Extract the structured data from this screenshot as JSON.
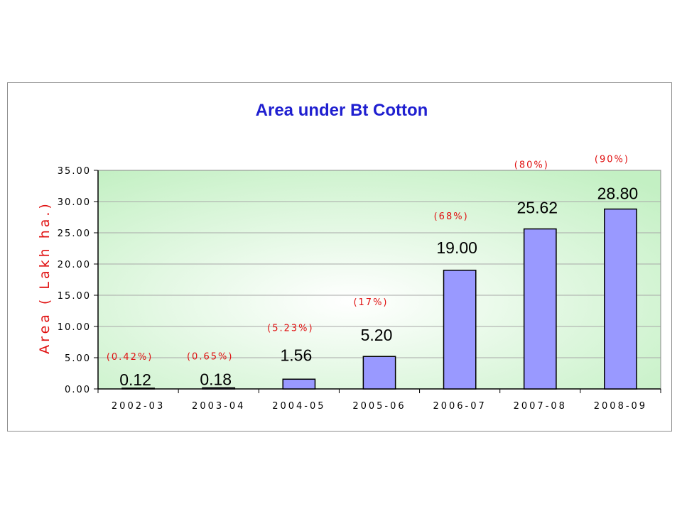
{
  "chart_data": {
    "type": "bar",
    "title": "Area under Bt Cotton",
    "ylabel": "Area ( Lakh ha.)",
    "xlabel": "",
    "categories": [
      "2002-03",
      "2003-04",
      "2004-05",
      "2005-06",
      "2006-07",
      "2007-08",
      "2008-09"
    ],
    "values": [
      0.12,
      0.18,
      1.56,
      5.2,
      19.0,
      25.62,
      28.8
    ],
    "value_labels": [
      "0.12",
      "0.18",
      "1.56",
      "5.20",
      "19.00",
      "25.62",
      "28.80"
    ],
    "share_labels": [
      "(0.42%)",
      "(0.65%)",
      "(5.23%)",
      "(17%)",
      "(68%)",
      "(80%)",
      "(90%)"
    ],
    "ylim": [
      0,
      35
    ],
    "yticks": [
      0,
      5,
      10,
      15,
      20,
      25,
      30,
      35
    ],
    "ytick_labels": [
      "0.00",
      "5.00",
      "10.00",
      "15.00",
      "20.00",
      "25.00",
      "30.00",
      "35.00"
    ],
    "grid": true,
    "legend": "none",
    "colors": {
      "bar_fill": "#9999ff",
      "bar_stroke": "#000000",
      "title": "#1f1fd0",
      "ylabel": "#e01010",
      "share_label": "#e01010",
      "plot_bg_center": "#ffffff",
      "plot_bg_edge": "#c3f0c3"
    }
  }
}
